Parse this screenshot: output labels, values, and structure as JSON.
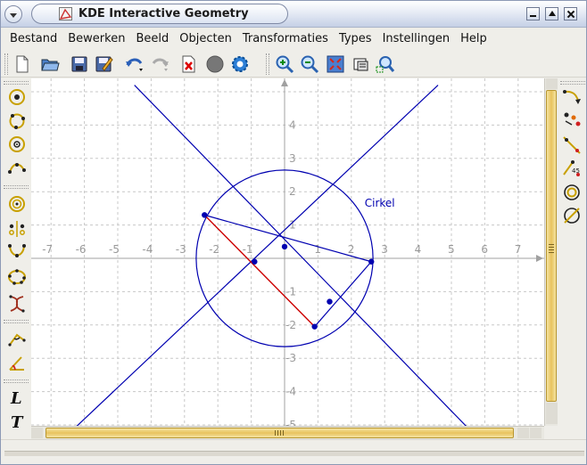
{
  "window": {
    "title": "KDE Interactive Geometry",
    "controls": [
      "minimize",
      "maximize",
      "close"
    ]
  },
  "menubar": {
    "items": [
      "Bestand",
      "Bewerken",
      "Beeld",
      "Objecten",
      "Transformaties",
      "Types",
      "Instellingen",
      "Help"
    ]
  },
  "toolbar": {
    "buttons": [
      "new-document-icon",
      "open-folder-icon",
      "save-icon",
      "save-as-icon",
      "undo-icon",
      "redo-icon",
      "delete-icon",
      "stop-icon",
      "run-macro-icon",
      "zoom-in-icon",
      "zoom-out-icon",
      "zoom-fit-icon",
      "screen-capture-icon",
      "zoom-area-icon"
    ]
  },
  "left_toolbar": {
    "buttons": [
      "point-icon",
      "point-on-curve-icon",
      "midpoint-icon",
      "segment-icon",
      "circle-by-center-icon",
      "mirror-point-icon",
      "arc-icon",
      "conic-icon",
      "locus-icon",
      "angle-icon",
      "vector-icon",
      "text-label-icon",
      "text-t-icon"
    ]
  },
  "right_toolbar": {
    "buttons": [
      "transform-point-icon",
      "rotate-icon",
      "line-icon",
      "intersection-icon",
      "concentric-icon",
      "tangent-icon"
    ]
  },
  "colors": {
    "canvas_bg": "#ffffff",
    "grid": "#c8c8c8",
    "axes": "#a0a0a0",
    "construction": "#0000b0",
    "segment_highlight": "#cc0000",
    "scrollbar": "#e8c35e"
  },
  "chart_data": {
    "type": "scatter",
    "title": "",
    "xlabel": "",
    "ylabel": "",
    "xlim": [
      -7.5,
      7.5
    ],
    "ylim": [
      -5.2,
      5.2
    ],
    "grid": true,
    "x_ticks": [
      -7,
      -6,
      -5,
      -4,
      -3,
      -2,
      -1,
      1,
      2,
      3,
      4,
      5,
      6,
      7
    ],
    "y_ticks": [
      -5,
      -4,
      -3,
      -2,
      -1,
      1,
      2,
      3,
      4
    ],
    "circle": {
      "label": "Cirkel",
      "center": [
        0,
        0
      ],
      "radius": 2.65
    },
    "points": [
      {
        "x": -2.4,
        "y": 1.3
      },
      {
        "x": 0,
        "y": 0.35
      },
      {
        "x": -0.9,
        "y": -0.1
      },
      {
        "x": 2.6,
        "y": -0.1
      },
      {
        "x": 1.35,
        "y": -1.3
      },
      {
        "x": 0.9,
        "y": -2.05
      }
    ],
    "lines": [
      {
        "from": [
          -4.5,
          5.2
        ],
        "to": [
          5.6,
          -5.2
        ]
      },
      {
        "from": [
          -6.4,
          -5.2
        ],
        "to": [
          4.6,
          5.2
        ]
      }
    ],
    "segments": [
      {
        "from": [
          -2.4,
          1.3
        ],
        "to": [
          2.6,
          -0.1
        ]
      },
      {
        "from": [
          0.9,
          -2.05
        ],
        "to": [
          2.6,
          -0.1
        ]
      }
    ],
    "highlighted_segment": {
      "from": [
        -2.4,
        1.3
      ],
      "to": [
        0.9,
        -2.05
      ]
    }
  }
}
